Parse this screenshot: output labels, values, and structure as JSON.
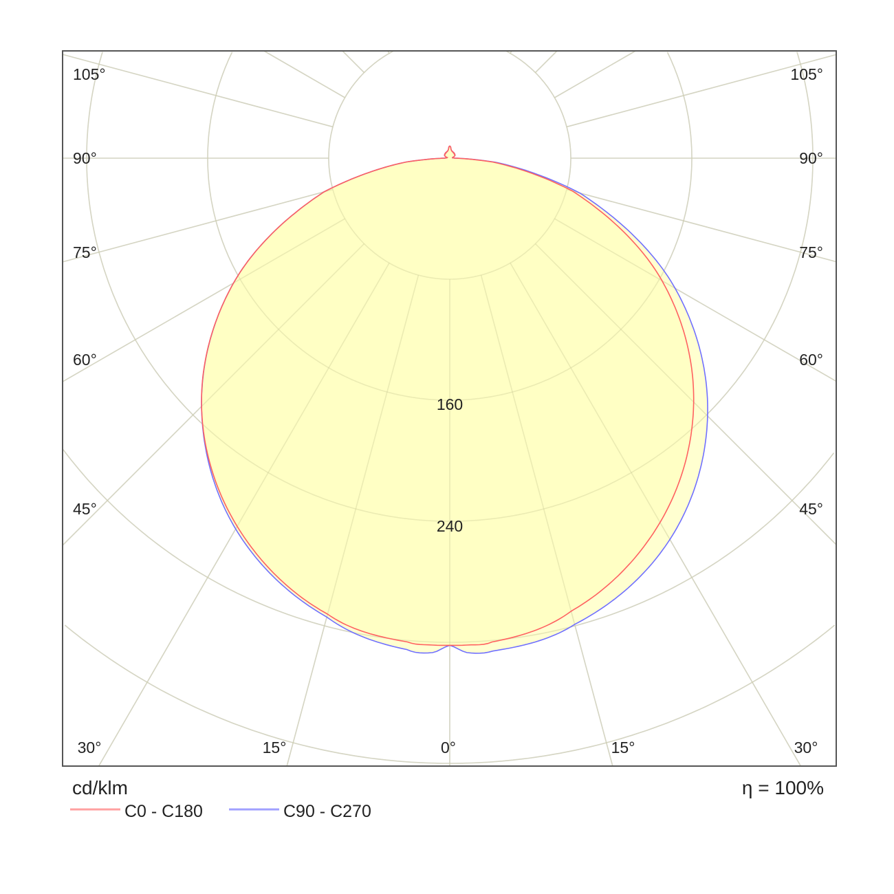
{
  "chart_data": {
    "type": "polar",
    "unit_label": "cd/klm",
    "efficiency_label": "η = 100%",
    "ring_values": [
      80,
      160,
      240,
      320,
      400,
      480,
      560
    ],
    "ring_labels": [
      "160",
      "240"
    ],
    "angle_step": 15,
    "angle_labels": {
      "left": [
        "105°",
        "90°",
        "75°",
        "60°",
        "45°"
      ],
      "right": [
        "105°",
        "90°",
        "75°",
        "60°",
        "45°"
      ],
      "bottom": [
        "30°",
        "15°",
        "0°",
        "15°",
        "30°"
      ]
    },
    "grid": true,
    "legend_placement": "bottom-left",
    "fill_color": "#ffffc0",
    "angles": [
      0,
      2,
      5,
      15,
      30,
      45,
      60,
      75,
      85,
      90,
      120,
      150,
      165,
      172,
      176,
      180
    ],
    "series": [
      {
        "name": "C0 - C180",
        "color": "#ff6060",
        "right_values": [
          322,
          322,
          321,
          310,
          278,
          228,
          162,
          84,
          28,
          3.6,
          4,
          4.5,
          5,
          6,
          7.5,
          8
        ],
        "left_values": [
          322,
          322,
          321,
          312,
          281,
          232,
          165,
          86,
          29,
          3.6,
          4,
          4.5,
          5,
          6,
          7.5,
          8
        ]
      },
      {
        "name": "C90 - C270",
        "color": "#7070ff",
        "right_values": [
          322,
          327,
          327,
          319,
          291,
          241,
          172,
          89,
          30,
          3.6,
          4,
          4.5,
          5,
          6,
          7.5,
          8
        ],
        "left_values": [
          322,
          327,
          326,
          314,
          283,
          232,
          165,
          86,
          29,
          3.6,
          4,
          4.5,
          5,
          6,
          7.5,
          8
        ]
      }
    ]
  }
}
